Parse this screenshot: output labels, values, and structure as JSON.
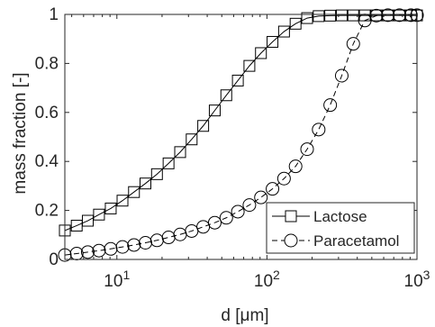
{
  "chart_data": {
    "type": "line",
    "xlabel": "d [μm]",
    "ylabel": "mass fraction [-]",
    "xscale": "log",
    "xlim": [
      4.5,
      1000
    ],
    "ylim": [
      0,
      1
    ],
    "grid": false,
    "legend_position": "bottom-right",
    "x_ticks": [
      {
        "value": 10,
        "base": "10",
        "exp": "1"
      },
      {
        "value": 100,
        "base": "10",
        "exp": "2"
      },
      {
        "value": 1000,
        "base": "10",
        "exp": "3"
      }
    ],
    "y_ticks": [
      {
        "value": 0,
        "label": "0"
      },
      {
        "value": 0.2,
        "label": "0.2"
      },
      {
        "value": 0.4,
        "label": "0.4"
      },
      {
        "value": 0.6,
        "label": "0.6"
      },
      {
        "value": 0.8,
        "label": "0.8"
      },
      {
        "value": 1,
        "label": "1"
      }
    ],
    "x": [
      4.5,
      5.4,
      6.4,
      7.6,
      9.1,
      10.9,
      13.0,
      15.5,
      18.5,
      22.1,
      26.4,
      31.5,
      37.6,
      44.9,
      53.6,
      64.0,
      76.4,
      91.2,
      108.9,
      130.0,
      155.2,
      185.3,
      221.2,
      264.0,
      315.2,
      376.2,
      449.1,
      536.1,
      640.0,
      764.0,
      912.0,
      1000.0
    ],
    "series": [
      {
        "name": "Lactose",
        "marker": "square",
        "line_style": "solid",
        "color": "#000000",
        "values": [
          0.118,
          0.138,
          0.158,
          0.183,
          0.208,
          0.24,
          0.275,
          0.31,
          0.348,
          0.392,
          0.438,
          0.49,
          0.545,
          0.608,
          0.67,
          0.73,
          0.79,
          0.842,
          0.888,
          0.93,
          0.962,
          0.985,
          0.993,
          0.995,
          0.996,
          0.996,
          0.996,
          0.996,
          0.996,
          0.996,
          0.996,
          0.996
        ]
      },
      {
        "name": "Paracetamol",
        "marker": "circle",
        "line_style": "dashed",
        "color": "#000000",
        "values": [
          0.018,
          0.024,
          0.03,
          0.036,
          0.043,
          0.051,
          0.059,
          0.068,
          0.078,
          0.09,
          0.102,
          0.116,
          0.133,
          0.15,
          0.17,
          0.195,
          0.222,
          0.253,
          0.288,
          0.33,
          0.38,
          0.45,
          0.53,
          0.63,
          0.75,
          0.88,
          0.975,
          0.995,
          0.997,
          0.997,
          0.997,
          0.997
        ]
      }
    ]
  }
}
